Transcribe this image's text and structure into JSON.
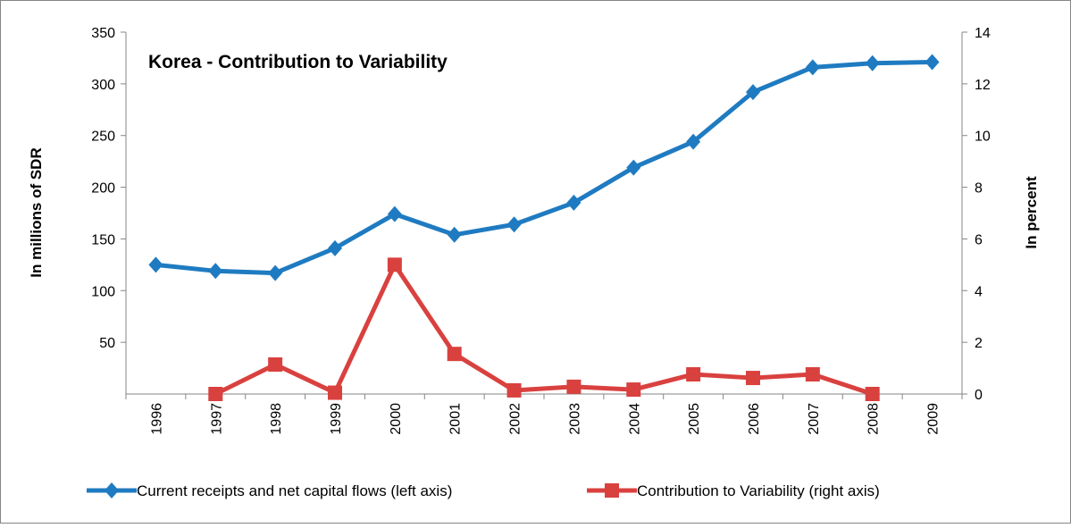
{
  "chart_data": {
    "type": "line",
    "title": "Korea - Contribution to Variability",
    "y_label": "In millions of SDR",
    "y2_label": "In percent",
    "categories": [
      "1996",
      "1997",
      "1998",
      "1999",
      "2000",
      "2001",
      "2002",
      "2003",
      "2004",
      "2005",
      "2006",
      "2007",
      "2008",
      "2009"
    ],
    "series": [
      {
        "name": "Current receipts and net capital flows (left axis)",
        "color": "#1f7bc1",
        "marker": "diamond",
        "values": [
          125,
          119,
          117,
          141,
          174,
          154,
          164,
          185,
          219,
          244,
          292,
          316,
          320,
          321
        ]
      },
      {
        "name": "Contribution to Variability  (right axis)",
        "color": "#d9413f",
        "marker": "square",
        "axis": "y2",
        "values": [
          null,
          0.0,
          1.14,
          0.05,
          5.0,
          1.55,
          0.14,
          0.28,
          0.17,
          0.76,
          0.62,
          0.76,
          0.0,
          null
        ]
      }
    ],
    "ylim": [
      0,
      350
    ],
    "yticks": [
      50,
      100,
      150,
      200,
      250,
      300,
      350
    ],
    "y2lim": [
      0,
      14
    ],
    "y2ticks": [
      0,
      2,
      4,
      6,
      8,
      10,
      12,
      14
    ],
    "grid": false
  }
}
